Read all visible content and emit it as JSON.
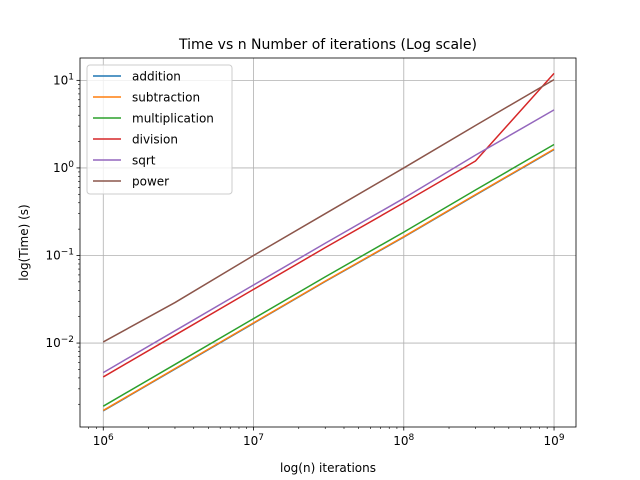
{
  "chart_data": {
    "type": "line",
    "title": "Time vs n Number of iterations (Log scale)",
    "xlabel": "log(n) iterations",
    "ylabel": "log(Time) (s)",
    "xscale": "log",
    "yscale": "log",
    "xlim": [
      700000,
      1400000000
    ],
    "ylim": [
      0.0011,
      18
    ],
    "grid": true,
    "legend_position": "top-left",
    "x": [
      1000000,
      3000000,
      10000000,
      30000000,
      100000000,
      300000000,
      1000000000
    ],
    "xticks": [
      {
        "value": 1000000,
        "mantissa": "10",
        "exp": "6"
      },
      {
        "value": 10000000,
        "mantissa": "10",
        "exp": "7"
      },
      {
        "value": 100000000,
        "mantissa": "10",
        "exp": "8"
      },
      {
        "value": 1000000000,
        "mantissa": "10",
        "exp": "9"
      }
    ],
    "yticks": [
      {
        "value": 0.01,
        "mantissa": "10",
        "exp": "−2"
      },
      {
        "value": 0.1,
        "mantissa": "10",
        "exp": "−1"
      },
      {
        "value": 1,
        "mantissa": "10",
        "exp": "0"
      },
      {
        "value": 10,
        "mantissa": "10",
        "exp": "1"
      }
    ],
    "series": [
      {
        "name": "addition",
        "color": "#1f77b4",
        "values": [
          0.00168,
          0.00505,
          0.0168,
          0.0505,
          0.162,
          0.49,
          1.62
        ]
      },
      {
        "name": "subtraction",
        "color": "#ff7f0e",
        "values": [
          0.0017,
          0.0051,
          0.017,
          0.051,
          0.164,
          0.495,
          1.64
        ]
      },
      {
        "name": "multiplication",
        "color": "#2ca02c",
        "values": [
          0.0019,
          0.0057,
          0.019,
          0.057,
          0.185,
          0.56,
          1.85
        ]
      },
      {
        "name": "division",
        "color": "#d62728",
        "values": [
          0.0041,
          0.0123,
          0.041,
          0.123,
          0.4,
          1.2,
          12
        ]
      },
      {
        "name": "sqrt",
        "color": "#9467bd",
        "values": [
          0.0046,
          0.0138,
          0.046,
          0.138,
          0.45,
          1.4,
          4.6
        ]
      },
      {
        "name": "power",
        "color": "#8c564b",
        "values": [
          0.0103,
          0.029,
          0.1,
          0.3,
          1.0,
          3.05,
          10.2
        ]
      }
    ]
  }
}
